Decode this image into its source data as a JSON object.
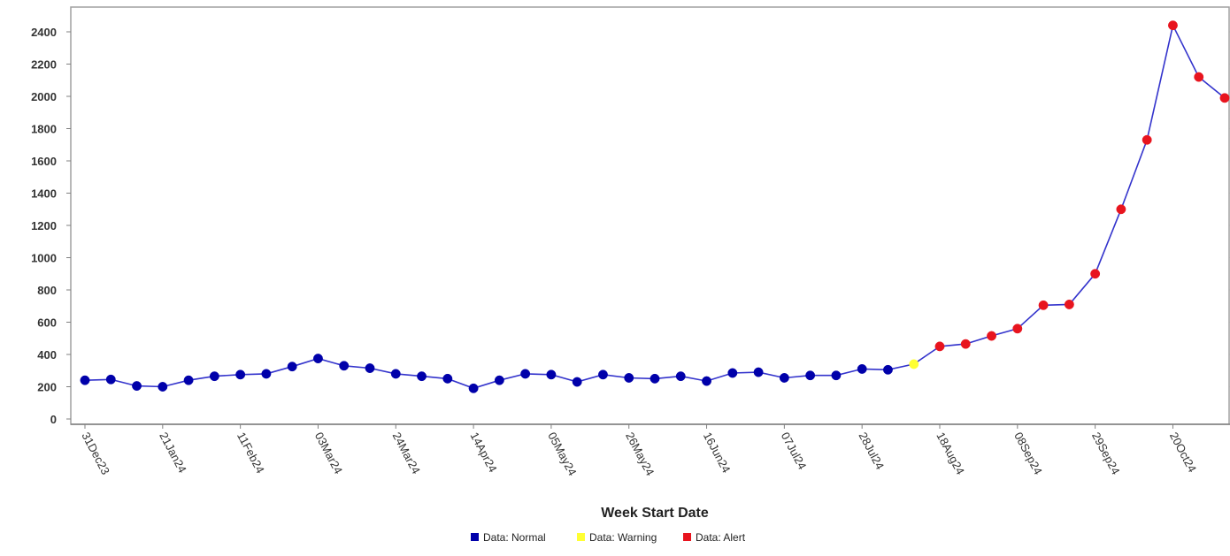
{
  "chart_data": {
    "type": "line",
    "title": "",
    "xlabel": "Week Start Date",
    "ylabel": "",
    "ylim": [
      0,
      2550
    ],
    "yticks": [
      0,
      200,
      400,
      600,
      800,
      1000,
      1200,
      1400,
      1600,
      1800,
      2000,
      2200,
      2400
    ],
    "grid": true,
    "legend_position": "bottom-center",
    "line_color": "#3333cc",
    "status_colors": {
      "normal": "#0000aa",
      "warning": "#ffff33",
      "alert": "#e8141e"
    },
    "legend": [
      {
        "label": "Data: Normal",
        "status": "normal"
      },
      {
        "label": "Data: Warning",
        "status": "warning"
      },
      {
        "label": "Data: Alert",
        "status": "alert"
      }
    ],
    "x_tick_labels": [
      "31Dec23",
      "21Jan24",
      "11Feb24",
      "03Mar24",
      "24Mar24",
      "14Apr24",
      "05May24",
      "26May24",
      "16Jun24",
      "07Jul24",
      "28Jul24",
      "18Aug24",
      "08Sep24",
      "29Sep24",
      "20Oct24"
    ],
    "x_tick_every": 3,
    "series": [
      {
        "values": [
          240,
          245,
          205,
          200,
          240,
          265,
          275,
          280,
          325,
          375,
          330,
          315,
          280,
          265,
          250,
          190,
          240,
          280,
          275,
          230,
          275,
          255,
          250,
          265,
          235,
          285,
          290,
          255,
          270,
          270,
          310,
          305,
          340,
          450,
          465,
          515,
          560,
          705,
          710,
          900,
          1300,
          1730,
          2440,
          2120,
          1990
        ],
        "status": [
          "normal",
          "normal",
          "normal",
          "normal",
          "normal",
          "normal",
          "normal",
          "normal",
          "normal",
          "normal",
          "normal",
          "normal",
          "normal",
          "normal",
          "normal",
          "normal",
          "normal",
          "normal",
          "normal",
          "normal",
          "normal",
          "normal",
          "normal",
          "normal",
          "normal",
          "normal",
          "normal",
          "normal",
          "normal",
          "normal",
          "normal",
          "normal",
          "warning",
          "alert",
          "alert",
          "alert",
          "alert",
          "alert",
          "alert",
          "alert",
          "alert",
          "alert",
          "alert",
          "alert",
          "alert"
        ]
      }
    ]
  }
}
